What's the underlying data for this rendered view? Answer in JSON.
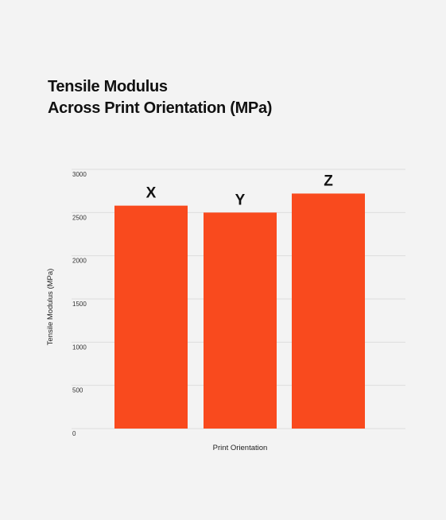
{
  "chart_data": {
    "type": "bar",
    "title": "Tensile Modulus",
    "subtitle": "Across Print Orientation (MPa)",
    "xlabel": "Print Orientation",
    "ylabel": "Tensile Modulus (MPa)",
    "categories": [
      "X",
      "Y",
      "Z"
    ],
    "values": [
      2580,
      2500,
      2720
    ],
    "data_labels": [
      "X",
      "Y",
      "Z"
    ],
    "ylim": [
      0,
      3000
    ],
    "yticks": [
      0,
      500,
      1000,
      1500,
      2000,
      2500,
      3000
    ],
    "grid": true,
    "legend": "none",
    "colors": {
      "bar": "#f94a1e",
      "grid": "#dddddd",
      "background": "#f3f3f3"
    }
  }
}
